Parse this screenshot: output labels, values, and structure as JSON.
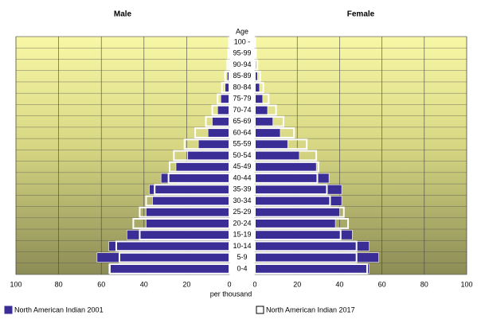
{
  "chart_data": {
    "type": "pyramid",
    "y_label": "Age",
    "x_label": "per thousand",
    "categories": [
      "100 -",
      "95-99",
      "90-94",
      "85-89",
      "80-84",
      "75-79",
      "70-74",
      "65-69",
      "60-64",
      "55-59",
      "50-54",
      "45-49",
      "40-44",
      "35-39",
      "30-34",
      "25-29",
      "20-24",
      "15-19",
      "10-14",
      "5-9",
      "0-4"
    ],
    "xlim": [
      0,
      100
    ],
    "xticks": [
      0,
      20,
      40,
      60,
      80,
      100
    ],
    "grid": true,
    "legend": "bottom",
    "series": [
      {
        "name": "North American Indian 2001",
        "color": "#3b2d96",
        "style": "filled"
      },
      {
        "name": "North American Indian 2017",
        "color": "#ffffff",
        "style": "outline"
      }
    ],
    "panels": [
      {
        "title": "Male",
        "side": "left",
        "values": [
          [
            0.2,
            0.3,
            0.5,
            1,
            2,
            4,
            5.5,
            8,
            10,
            14.5,
            19.5,
            25,
            32,
            37.5,
            36,
            39,
            39,
            48,
            56.5,
            62,
            56.5
          ],
          [
            0.2,
            0.5,
            1,
            2,
            3.5,
            5.5,
            8,
            11,
            16,
            21,
            26,
            28,
            28.5,
            35,
            39,
            42,
            45,
            42,
            53,
            51.5,
            56
          ]
        ]
      },
      {
        "title": "Female",
        "side": "right",
        "values": [
          [
            0.1,
            0.3,
            0.6,
            1.2,
            2.2,
            3.7,
            6,
            8.5,
            12,
            15.5,
            21,
            29,
            35,
            41,
            41,
            40,
            38,
            46,
            54,
            58.5,
            54
          ],
          [
            0.2,
            0.5,
            1.2,
            2.5,
            4,
            6.5,
            10,
            13.5,
            18.5,
            24.5,
            29,
            30,
            29.5,
            34,
            35.5,
            42,
            44,
            40.5,
            48,
            48,
            53
          ]
        ]
      }
    ]
  }
}
